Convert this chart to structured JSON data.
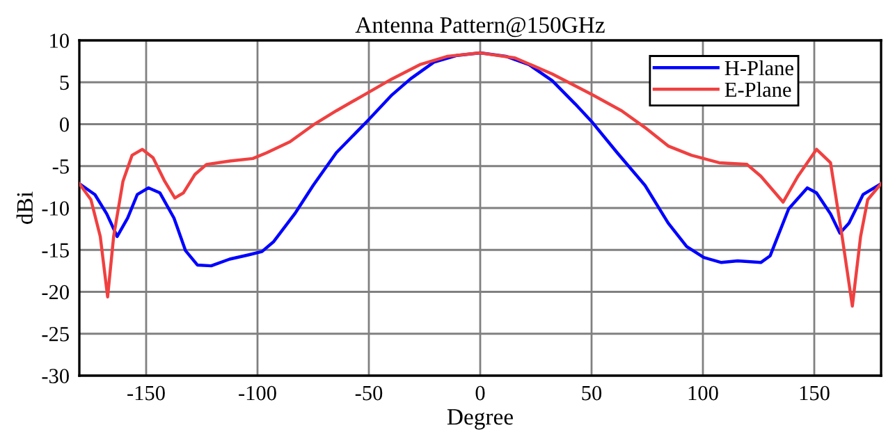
{
  "chart_data": {
    "type": "line",
    "title": "Antenna Pattern@150GHz",
    "xlabel": "Degree",
    "ylabel": "dBi",
    "xlim": [
      -180,
      180
    ],
    "xticks": [
      -150,
      -100,
      -50,
      0,
      50,
      100,
      150
    ],
    "ylim": [
      -30,
      10
    ],
    "yticks": [
      -30,
      -25,
      -20,
      -15,
      -10,
      -5,
      0,
      5,
      10
    ],
    "grid": true,
    "legend": "top right",
    "marker": "none",
    "line_style": "solid",
    "series": [
      {
        "name": "H-Plane",
        "color": "#0000ff",
        "x": [
          -180,
          -173,
          -167.7,
          -163,
          -158.3,
          -154,
          -149,
          -143.8,
          -137.5,
          -132.3,
          -127,
          -120.8,
          -112.5,
          -104.2,
          -98,
          -92.7,
          -83.3,
          -75,
          -64.6,
          -50.6,
          -39.6,
          -31.3,
          -20.8,
          -10.4,
          0,
          11.5,
          21.9,
          32.3,
          42.7,
          50.4,
          61.5,
          74,
          84.4,
          92.7,
          100.4,
          108.3,
          115.6,
          126,
          130.2,
          138.5,
          146.9,
          151,
          157.3,
          161.5,
          165.6,
          171.9,
          180
        ],
        "values": [
          -7.1,
          -8.4,
          -10.7,
          -13.4,
          -11.2,
          -8.4,
          -7.6,
          -8.2,
          -11.2,
          -15.1,
          -16.8,
          -16.9,
          -16.1,
          -15.6,
          -15.2,
          -14,
          -10.7,
          -7.3,
          -3.4,
          0.4,
          3.5,
          5.4,
          7.4,
          8.2,
          8.5,
          8.1,
          7.1,
          5.2,
          2.4,
          0.2,
          -3.4,
          -7.3,
          -11.8,
          -14.6,
          -15.9,
          -16.5,
          -16.3,
          -16.5,
          -15.7,
          -10.1,
          -7.6,
          -8.2,
          -10.7,
          -13,
          -11.8,
          -8.4,
          -7.1
        ]
      },
      {
        "name": "E-Plane",
        "color": "#f04040",
        "x": [
          -180,
          -174.8,
          -170.6,
          -167.3,
          -164.6,
          -160.4,
          -156.3,
          -151.7,
          -146.9,
          -141.7,
          -137.1,
          -133.3,
          -128.1,
          -122.9,
          -112.5,
          -102.1,
          -95.8,
          -85.4,
          -75,
          -64.6,
          -52.1,
          -39.6,
          -27.1,
          -14.6,
          0,
          15.6,
          32.3,
          50.4,
          63.5,
          74,
          84.4,
          94.8,
          107.3,
          119.8,
          126,
          136,
          142.7,
          151,
          157.3,
          162.5,
          167.1,
          170.8,
          174,
          180
        ],
        "values": [
          -7.1,
          -9,
          -13.4,
          -20.6,
          -13.4,
          -6.8,
          -3.7,
          -3,
          -4,
          -6.8,
          -8.8,
          -8.2,
          -6,
          -4.8,
          -4.4,
          -4.1,
          -3.4,
          -2.1,
          -0.1,
          1.6,
          3.5,
          5.4,
          7.1,
          8.1,
          8.5,
          7.9,
          6,
          3.5,
          1.6,
          -0.4,
          -2.6,
          -3.7,
          -4.6,
          -4.8,
          -6.2,
          -9.3,
          -6.2,
          -3,
          -4.6,
          -13.4,
          -21.7,
          -13.4,
          -9,
          -7.1
        ]
      }
    ]
  }
}
